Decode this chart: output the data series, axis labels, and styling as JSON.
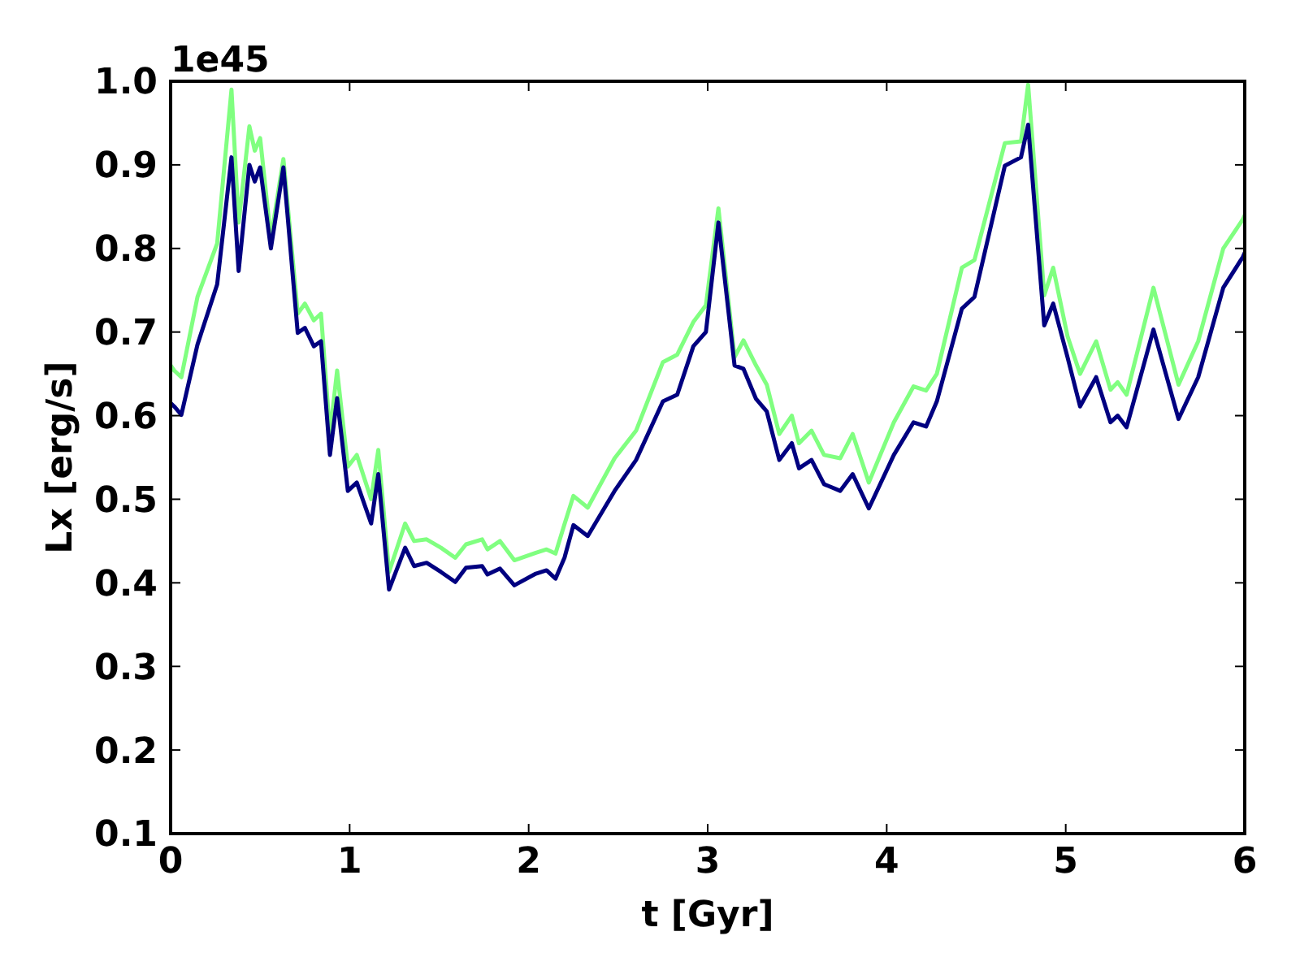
{
  "chart_data": {
    "type": "line",
    "xlabel": "t [Gyr]",
    "ylabel": "Lx [erg/s]",
    "annotations": [
      "1e45"
    ],
    "x": [
      0,
      0.02,
      0.06,
      0.15,
      0.26,
      0.34,
      0.38,
      0.44,
      0.47,
      0.5,
      0.56,
      0.63,
      0.71,
      0.75,
      0.8,
      0.84,
      0.89,
      0.93,
      0.99,
      1.04,
      1.12,
      1.16,
      1.22,
      1.31,
      1.36,
      1.43,
      1.51,
      1.59,
      1.65,
      1.74,
      1.77,
      1.84,
      1.92,
      2.04,
      2.1,
      2.15,
      2.2,
      2.25,
      2.33,
      2.48,
      2.6,
      2.75,
      2.83,
      2.92,
      2.99,
      3.06,
      3.15,
      3.2,
      3.27,
      3.33,
      3.4,
      3.47,
      3.51,
      3.58,
      3.65,
      3.74,
      3.81,
      3.9,
      4.04,
      4.15,
      4.22,
      4.28,
      4.42,
      4.49,
      4.66,
      4.75,
      4.79,
      4.88,
      4.93,
      5.01,
      5.08,
      5.17,
      5.25,
      5.29,
      5.34,
      5.49,
      5.63,
      5.74,
      5.88,
      5.99,
      6
    ],
    "xlim": [
      0,
      6
    ],
    "xticks": [
      0,
      1,
      2,
      3,
      4,
      5,
      6
    ],
    "ylim": [
      0.1,
      1
    ],
    "yticks": [
      0.1,
      0.2,
      0.3,
      0.4,
      0.5,
      0.6,
      0.7,
      0.8,
      0.9,
      {
        "value": 1,
        "label": "1.0"
      }
    ],
    "grid": false,
    "marker": "none",
    "line_style": "solid",
    "series": [
      {
        "color": "#80ff80",
        "values": [
          0.66,
          0.654,
          0.646,
          0.742,
          0.806,
          0.99,
          0.831,
          0.946,
          0.917,
          0.932,
          0.812,
          0.907,
          0.722,
          0.734,
          0.714,
          0.722,
          0.578,
          0.654,
          0.539,
          0.553,
          0.5,
          0.559,
          0.413,
          0.471,
          0.45,
          0.452,
          0.442,
          0.43,
          0.446,
          0.452,
          0.44,
          0.45,
          0.427,
          0.436,
          0.44,
          0.435,
          0.47,
          0.504,
          0.49,
          0.549,
          0.582,
          0.664,
          0.673,
          0.712,
          0.732,
          0.848,
          0.67,
          0.69,
          0.66,
          0.637,
          0.578,
          0.6,
          0.567,
          0.582,
          0.553,
          0.549,
          0.578,
          0.52,
          0.592,
          0.635,
          0.63,
          0.65,
          0.777,
          0.786,
          0.926,
          0.928,
          0.996,
          0.744,
          0.777,
          0.695,
          0.65,
          0.689,
          0.631,
          0.64,
          0.625,
          0.753,
          0.637,
          0.689,
          0.8,
          0.835,
          0.84
        ]
      },
      {
        "color": "#000080",
        "values": [
          0.615,
          0.611,
          0.601,
          0.685,
          0.757,
          0.909,
          0.773,
          0.9,
          0.88,
          0.897,
          0.8,
          0.897,
          0.699,
          0.705,
          0.683,
          0.689,
          0.553,
          0.621,
          0.51,
          0.52,
          0.471,
          0.53,
          0.392,
          0.442,
          0.42,
          0.424,
          0.413,
          0.401,
          0.418,
          0.42,
          0.41,
          0.417,
          0.397,
          0.411,
          0.415,
          0.405,
          0.43,
          0.469,
          0.456,
          0.51,
          0.547,
          0.617,
          0.625,
          0.683,
          0.7,
          0.831,
          0.66,
          0.656,
          0.62,
          0.605,
          0.547,
          0.567,
          0.537,
          0.547,
          0.518,
          0.51,
          0.53,
          0.489,
          0.553,
          0.592,
          0.587,
          0.617,
          0.728,
          0.742,
          0.899,
          0.909,
          0.948,
          0.708,
          0.734,
          0.67,
          0.611,
          0.646,
          0.592,
          0.6,
          0.586,
          0.703,
          0.596,
          0.646,
          0.753,
          0.79,
          0.795
        ]
      }
    ]
  }
}
